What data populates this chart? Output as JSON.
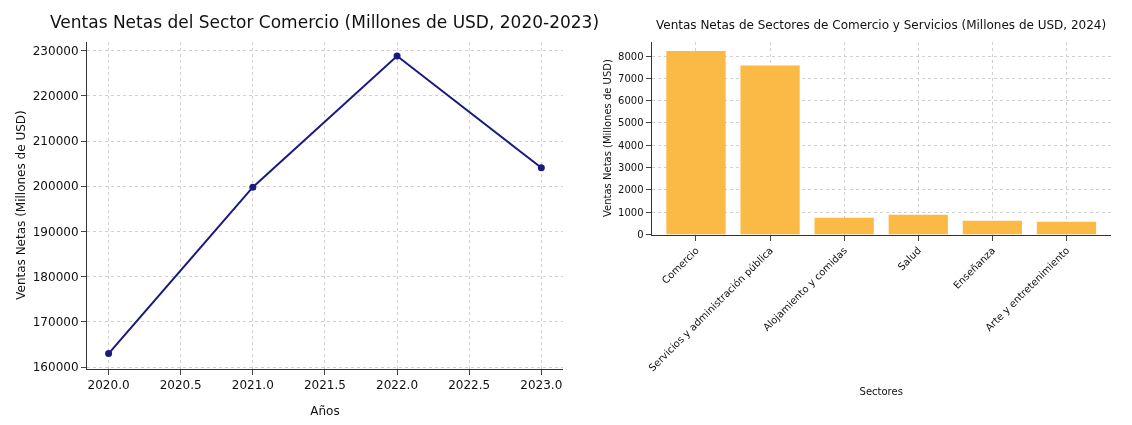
{
  "chart_data": [
    {
      "type": "line",
      "title": "Ventas Netas del Sector Comercio (Millones de USD, 2020-2023)",
      "xlabel": "Años",
      "ylabel": "Ventas Netas (Millones de USD)",
      "x": [
        2020,
        2021,
        2022,
        2023
      ],
      "series": [
        {
          "color": "#1a1a80",
          "values": [
            163000,
            199800,
            228800,
            204100
          ]
        }
      ],
      "xlim": [
        2019.85,
        2023.15
      ],
      "xticks": [
        {
          "value": 2020,
          "label": "2020.0"
        },
        {
          "value": 2020.5,
          "label": "2020.5"
        },
        {
          "value": 2021,
          "label": "2021.0"
        },
        {
          "value": 2021.5,
          "label": "2021.5"
        },
        {
          "value": 2022,
          "label": "2022.0"
        },
        {
          "value": 2022.5,
          "label": "2022.5"
        },
        {
          "value": 2023,
          "label": "2023.0"
        }
      ],
      "ylim": [
        159700,
        232000
      ],
      "yticks": [
        160000,
        170000,
        180000,
        190000,
        200000,
        210000,
        220000,
        230000
      ],
      "grid": true,
      "marker": "circle",
      "line_style": "solid"
    },
    {
      "type": "bar",
      "title": "Ventas Netas de Sectores de Comercio y Servicios (Millones de USD, 2024)",
      "xlabel": "Sectores",
      "ylabel": "Ventas Netas (Millones de USD)",
      "categories": [
        "Comercio",
        "Servicios y administración pública",
        "Alojamiento y comidas",
        "Salud",
        "Enseñanza",
        "Arte y entretenimiento"
      ],
      "values": [
        8230,
        7570,
        750,
        890,
        620,
        580
      ],
      "color": "#fbb946",
      "ylim": [
        0,
        8650
      ],
      "yticks": [
        0,
        1000,
        2000,
        3000,
        4000,
        5000,
        6000,
        7000,
        8000
      ],
      "grid": true
    }
  ]
}
